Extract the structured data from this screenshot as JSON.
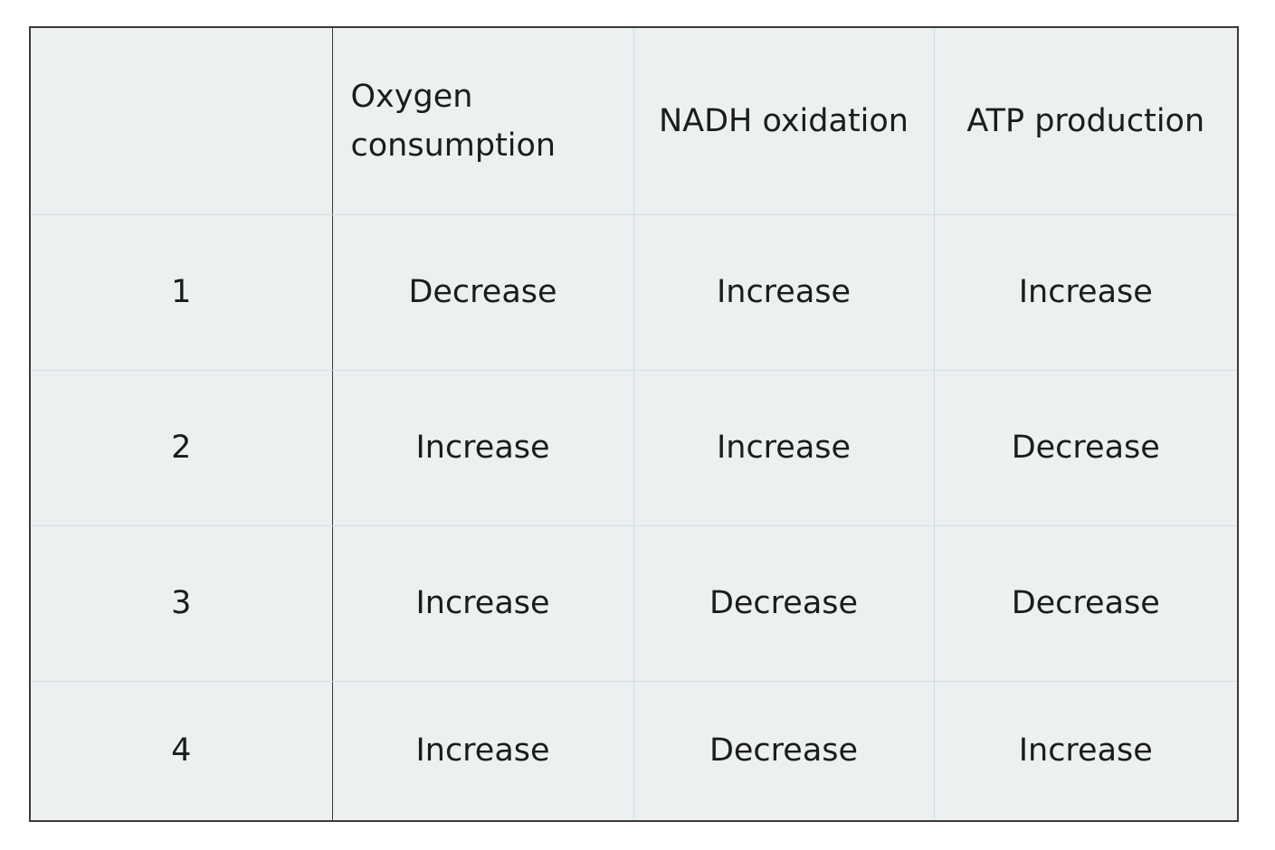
{
  "table": {
    "headers": [
      "",
      "Oxygen\nconsumption",
      "NADH oxidation",
      "ATP production"
    ],
    "header_lines": {
      "oxygen_line1": "Oxygen",
      "oxygen_line2": "consumption"
    },
    "rows": [
      {
        "label": "1",
        "oxygen": "Decrease",
        "nadh": "Increase",
        "atp": "Increase"
      },
      {
        "label": "2",
        "oxygen": "Increase",
        "nadh": "Increase",
        "atp": "Decrease"
      },
      {
        "label": "3",
        "oxygen": "Increase",
        "nadh": "Decrease",
        "atp": "Decrease"
      },
      {
        "label": "4",
        "oxygen": "Increase",
        "nadh": "Decrease",
        "atp": "Increase"
      }
    ]
  },
  "colors": {
    "cell_background": "#ecf0f1",
    "outer_border": "#3a3a3a",
    "inner_border": "#cfe0e0",
    "text": "#1c1c1c"
  }
}
